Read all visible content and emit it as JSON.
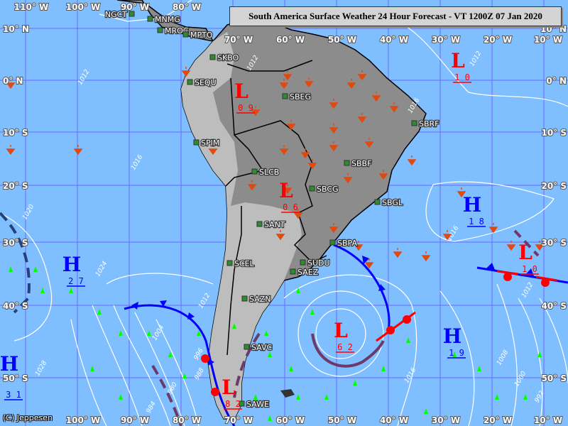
{
  "title": "South America Surface Weather 24 Hour Forecast - VT 1200Z 07 Jan 2020",
  "copyright": "(C) Jeppesen",
  "colors": {
    "ocean": "#80bfff",
    "land_dark": "#8c8c8c",
    "land_light": "#bdbdbd",
    "grid": "#6a6aff",
    "low": "#ff0000",
    "high": "#0000ff",
    "cold_front": "#0000ff",
    "warm_front": "#ff0000",
    "occluded": "#6b3a6b",
    "precip": "#e04a10",
    "snow": "#00ff00"
  },
  "longitude_labels": [
    "110° W",
    "100° W",
    "90° W",
    "80° W",
    "70° W",
    "60° W",
    "50° W",
    "40° W",
    "30° W",
    "20° W",
    "10° W"
  ],
  "latitude_labels": [
    "10° N",
    "0° N",
    "10° S",
    "20° S",
    "30° S",
    "40° S",
    "50° S"
  ],
  "stations": [
    "NGCT",
    "MNMG",
    "MROC",
    "MPTO",
    "SKBO",
    "SEQU",
    "SBEG",
    "SBRF",
    "SPIM",
    "SLCB",
    "SBBF",
    "SBCG",
    "SBGL",
    "SANT",
    "SBPA",
    "SCEL",
    "SUDU",
    "SAEZ",
    "SAZN",
    "SAVC",
    "SAWE"
  ],
  "pressure_centers": [
    {
      "type": "L",
      "value": "0 9"
    },
    {
      "type": "L",
      "value": "1 0"
    },
    {
      "type": "L",
      "value": "0 6"
    },
    {
      "type": "H",
      "value": "1 8"
    },
    {
      "type": "L",
      "value": "1 0"
    },
    {
      "type": "H",
      "value": "2 7"
    },
    {
      "type": "L",
      "value": "6 2"
    },
    {
      "type": "H",
      "value": "1 9"
    },
    {
      "type": "H",
      "value": "3 1"
    },
    {
      "type": "L",
      "value": "8 2"
    }
  ],
  "isobar_labels": [
    "1012",
    "1012",
    "1012",
    "1016",
    "1016",
    "1020",
    "1024",
    "1016",
    "1012",
    "1004",
    "996",
    "988",
    "980",
    "984",
    "1028",
    "1016",
    "1008",
    "1000",
    "992",
    "1012"
  ]
}
